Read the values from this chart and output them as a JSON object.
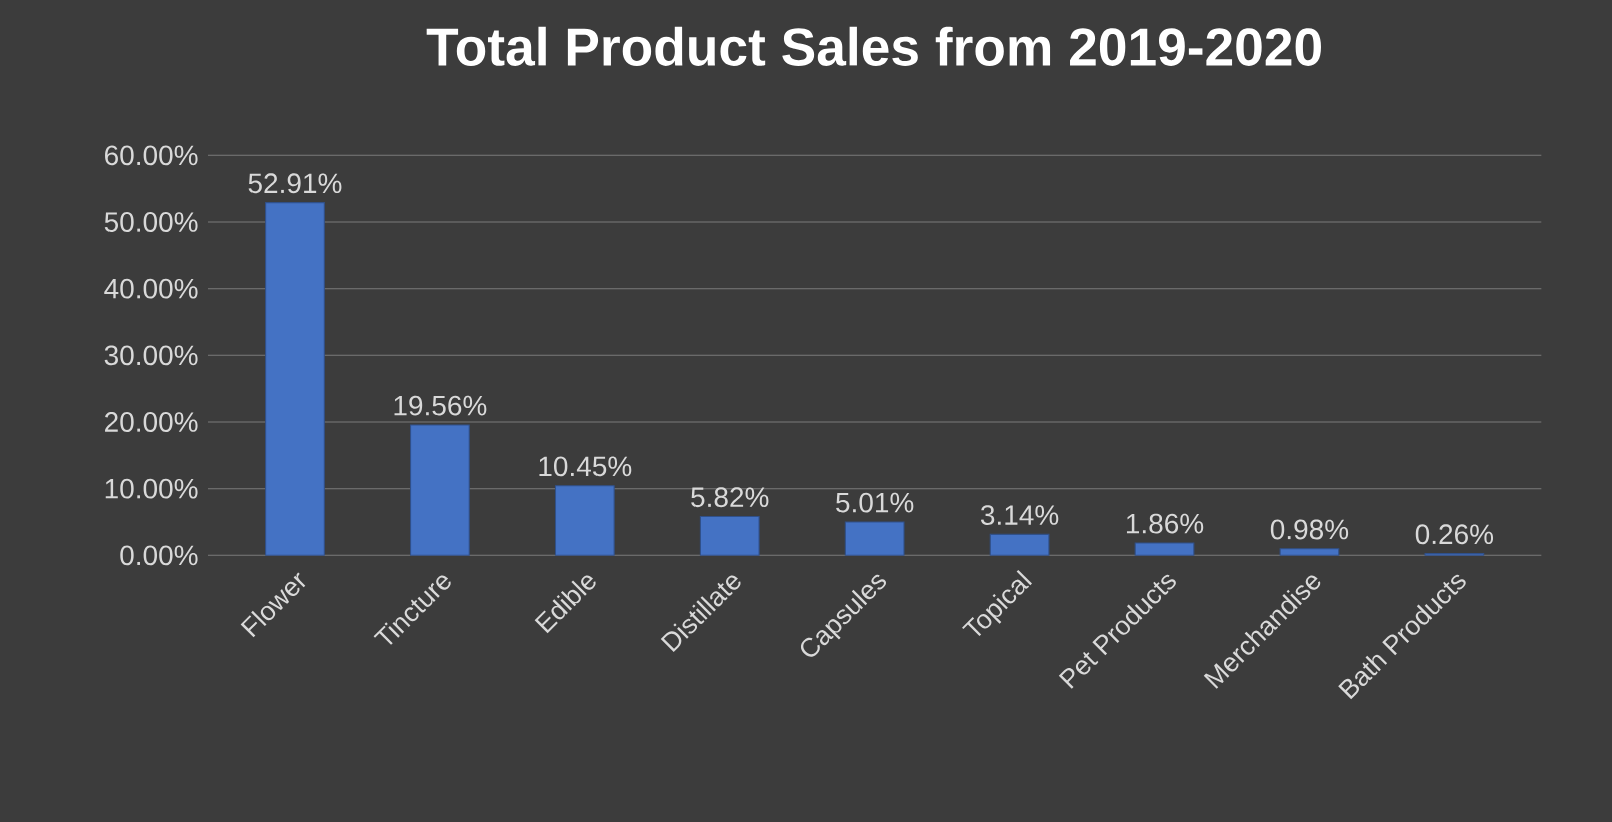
{
  "chart_data": {
    "type": "bar",
    "title": "Total Product Sales from 2019-2020",
    "categories": [
      "Flower",
      "Tincture",
      "Edible",
      "Distillate",
      "Capsules",
      "Topical",
      "Pet Products",
      "Merchandise",
      "Bath Products"
    ],
    "values": [
      52.91,
      19.56,
      10.45,
      5.82,
      5.01,
      3.14,
      1.86,
      0.98,
      0.26
    ],
    "value_labels": [
      "52.91%",
      "19.56%",
      "10.45%",
      "5.82%",
      "5.01%",
      "3.14%",
      "1.86%",
      "0.98%",
      "0.26%"
    ],
    "color": "#4472c4",
    "ylim": [
      0,
      60
    ],
    "yticks": [
      {
        "value": 0,
        "label": "0.00%"
      },
      {
        "value": 10,
        "label": "10.00%"
      },
      {
        "value": 20,
        "label": "20.00%"
      },
      {
        "value": 30,
        "label": "30.00%"
      },
      {
        "value": 40,
        "label": "40.00%"
      },
      {
        "value": 50,
        "label": "50.00%"
      },
      {
        "value": 60,
        "label": "60.00%"
      }
    ],
    "grid": "y"
  }
}
